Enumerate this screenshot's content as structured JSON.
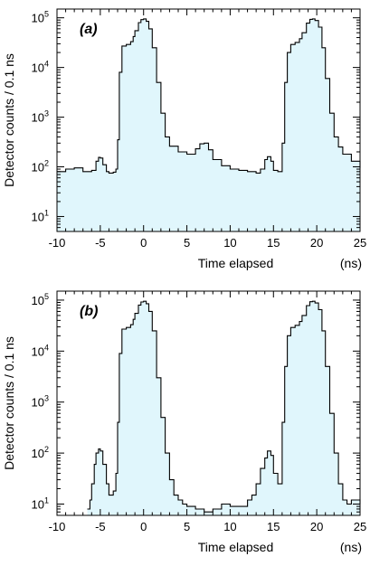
{
  "chart_data": [
    {
      "type": "area",
      "panel_label": "(a)",
      "xlabel": "Time elapsed",
      "xunit": "(ns)",
      "ylabel": "Detector  counts / 0.1 ns",
      "xlim": [
        -10,
        25
      ],
      "ylim": [
        5,
        150000
      ],
      "yscale": "log",
      "x_ticks": [
        -10,
        -5,
        0,
        5,
        10,
        15,
        20,
        25
      ],
      "x_tick_labels": [
        "-10",
        "-5",
        "0",
        "5",
        "10",
        "15",
        "20",
        "25"
      ],
      "y_ticks": [
        10,
        100,
        1000,
        10000,
        100000
      ],
      "y_tick_labels": [
        {
          "base": "10",
          "exp": "1"
        },
        {
          "base": "10",
          "exp": "2"
        },
        {
          "base": "10",
          "exp": "3"
        },
        {
          "base": "10",
          "exp": "4"
        },
        {
          "base": "10",
          "exp": "5"
        }
      ],
      "fill_color": "#e0f6fc",
      "line_color": "#000000",
      "x": [
        -10,
        -9,
        -8,
        -7,
        -6,
        -5.5,
        -5.2,
        -5,
        -4.7,
        -4.3,
        -4,
        -3.5,
        -3.2,
        -3,
        -2.8,
        -2.5,
        -2,
        -1.5,
        -1.2,
        -1,
        -0.6,
        -0.3,
        0,
        0.3,
        0.6,
        1,
        1.5,
        2,
        2.5,
        3,
        4,
        5,
        6,
        6.5,
        7,
        7.5,
        8,
        9,
        10,
        11,
        12,
        13,
        13.5,
        14,
        14.3,
        14.7,
        15,
        15.5,
        16,
        16.3,
        16.6,
        17,
        17.5,
        18,
        18.3,
        18.8,
        19.2,
        19.5,
        19.8,
        20.2,
        20.6,
        21,
        21.5,
        22,
        22.5,
        23,
        24,
        25
      ],
      "y": [
        80,
        90,
        95,
        80,
        85,
        130,
        155,
        150,
        110,
        80,
        75,
        78,
        90,
        350,
        8000,
        27000,
        29000,
        33000,
        42000,
        55000,
        80000,
        92000,
        95000,
        85000,
        60000,
        25000,
        5000,
        1200,
        400,
        260,
        200,
        180,
        230,
        290,
        300,
        220,
        140,
        105,
        90,
        85,
        80,
        75,
        90,
        140,
        160,
        130,
        85,
        80,
        300,
        5000,
        20000,
        29000,
        32000,
        38000,
        50000,
        78000,
        93000,
        95000,
        88000,
        65000,
        25000,
        6000,
        1200,
        400,
        250,
        180,
        130,
        95
      ]
    },
    {
      "type": "area",
      "panel_label": "(b)",
      "xlabel": "Time elapsed",
      "xunit": "(ns)",
      "ylabel": "Detector  counts / 0.1 ns",
      "xlim": [
        -10,
        25
      ],
      "ylim": [
        6,
        150000
      ],
      "yscale": "log",
      "x_ticks": [
        -10,
        -5,
        0,
        5,
        10,
        15,
        20,
        25
      ],
      "x_tick_labels": [
        "-10",
        "-5",
        "0",
        "5",
        "10",
        "15",
        "20",
        "25"
      ],
      "y_ticks": [
        10,
        100,
        1000,
        10000,
        100000
      ],
      "y_tick_labels": [
        {
          "base": "10",
          "exp": "1"
        },
        {
          "base": "10",
          "exp": "2"
        },
        {
          "base": "10",
          "exp": "3"
        },
        {
          "base": "10",
          "exp": "4"
        },
        {
          "base": "10",
          "exp": "5"
        }
      ],
      "fill_color": "#e0f6fc",
      "line_color": "#000000",
      "x": [
        -6.5,
        -6.2,
        -6,
        -5.7,
        -5.5,
        -5.2,
        -5,
        -4.7,
        -4.3,
        -4,
        -3.5,
        -3.2,
        -3,
        -2.8,
        -2.5,
        -2,
        -1.5,
        -1.2,
        -1,
        -0.6,
        -0.3,
        0,
        0.3,
        0.6,
        1,
        1.5,
        2,
        2.5,
        3,
        3.5,
        4,
        4.5,
        5,
        6,
        7,
        8,
        9,
        10,
        11,
        12,
        12.5,
        13,
        13.5,
        14,
        14.3,
        14.7,
        15,
        15.5,
        16,
        16.3,
        16.6,
        17,
        17.5,
        18,
        18.3,
        18.8,
        19.2,
        19.5,
        19.8,
        20.2,
        20.6,
        21,
        21.5,
        22,
        22.5,
        23,
        23.5,
        24,
        25
      ],
      "y": [
        8,
        12,
        25,
        60,
        100,
        120,
        110,
        60,
        25,
        15,
        18,
        40,
        400,
        9000,
        27000,
        29000,
        33000,
        42000,
        55000,
        80000,
        92000,
        95000,
        85000,
        60000,
        25000,
        3000,
        500,
        100,
        30,
        15,
        12,
        10,
        9,
        8,
        7,
        8,
        10,
        9,
        9,
        12,
        15,
        25,
        50,
        80,
        110,
        90,
        40,
        25,
        400,
        5000,
        20000,
        29000,
        32000,
        38000,
        50000,
        78000,
        93000,
        95000,
        88000,
        65000,
        25000,
        5000,
        600,
        100,
        25,
        12,
        10,
        12,
        10
      ]
    }
  ]
}
